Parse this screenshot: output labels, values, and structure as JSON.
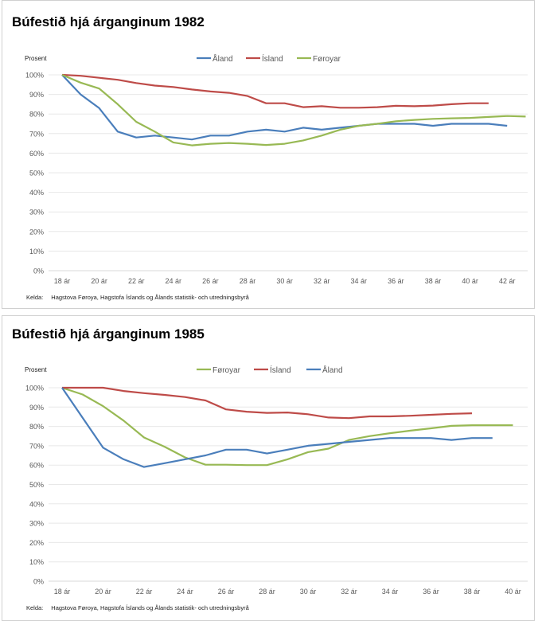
{
  "chart_data": [
    {
      "type": "line",
      "title": "Búfestið hjá árganginum 1982",
      "ylabel": "Prosent",
      "ylim": [
        0,
        100
      ],
      "yticks": [
        "0%",
        "10%",
        "20%",
        "30%",
        "40%",
        "50%",
        "60%",
        "70%",
        "80%",
        "90%",
        "100%"
      ],
      "x_start": 18,
      "xticks": [
        "18 ár",
        "20 ár",
        "22 ár",
        "24 ár",
        "26 ár",
        "28 ár",
        "30 ár",
        "32 ár",
        "34 ár",
        "36 ár",
        "38 ár",
        "40 ár",
        "42 ár"
      ],
      "legend_position": "top-center",
      "grid": true,
      "series": [
        {
          "name": "Åland",
          "color": "#4a7ebb",
          "values": [
            100,
            90,
            83,
            71,
            68,
            69,
            68,
            67,
            69,
            69,
            71,
            72,
            71,
            73,
            72,
            73,
            74,
            75,
            75,
            75,
            74,
            75,
            75,
            75,
            74
          ]
        },
        {
          "name": "Ísland",
          "color": "#be4b48",
          "values": [
            100,
            99.5,
            98.5,
            97.5,
            95.8,
            94.5,
            93.8,
            92.5,
            91.5,
            90.8,
            89.2,
            85.5,
            85.5,
            83.5,
            84,
            83.2,
            83.2,
            83.5,
            84.2,
            84,
            84.3,
            85,
            85.5,
            85.5
          ]
        },
        {
          "name": "Føroyar",
          "color": "#98b954",
          "values": [
            100,
            96,
            93,
            85,
            76,
            71,
            65.5,
            64,
            64.8,
            65.2,
            64.8,
            64.2,
            64.8,
            66.5,
            69,
            72,
            74,
            75,
            76.3,
            77,
            77.5,
            77.8,
            78,
            78.5,
            79,
            78.7
          ]
        }
      ],
      "source_label": "Kelda:",
      "source": "Hagstova Føroya, Hagstofa Íslands og Ålands statistik- och utredningsbyrå"
    },
    {
      "type": "line",
      "title": "Búfestið hjá árganginum 1985",
      "ylabel": "Prosent",
      "ylim": [
        0,
        100
      ],
      "yticks": [
        "0%",
        "10%",
        "20%",
        "30%",
        "40%",
        "50%",
        "60%",
        "70%",
        "80%",
        "90%",
        "100%"
      ],
      "x_start": 18,
      "xticks": [
        "18 ár",
        "20 ár",
        "22 ár",
        "24 ár",
        "26 ár",
        "28 ár",
        "30 ár",
        "32 ár",
        "34 ár",
        "36 ár",
        "38 ár",
        "40 ár"
      ],
      "legend_position": "top-center",
      "grid": true,
      "series": [
        {
          "name": "Føroyar",
          "color": "#98b954",
          "values": [
            100,
            96.5,
            90.5,
            83,
            74.3,
            69.5,
            64,
            60.2,
            60.2,
            60,
            60,
            63,
            66.7,
            68.5,
            73,
            75,
            76.5,
            77.8,
            79,
            80.3,
            80.6,
            80.6,
            80.6
          ]
        },
        {
          "name": "Ísland",
          "color": "#be4b48",
          "values": [
            100,
            100,
            100,
            98.3,
            97.2,
            96.3,
            95.2,
            93.4,
            88.8,
            87.6,
            87,
            87.2,
            86.3,
            84.6,
            84.3,
            85.2,
            85.2,
            85.5,
            86,
            86.5,
            86.8
          ]
        },
        {
          "name": "Åland",
          "color": "#4a7ebb",
          "values": [
            100,
            84.5,
            69,
            63,
            59,
            61,
            63,
            65,
            68,
            68,
            66,
            68,
            70,
            71,
            72,
            73,
            74,
            74,
            74,
            73,
            74,
            74
          ]
        }
      ],
      "source_label": "Kelda:",
      "source": "Hagstova Føroya, Hagstofa Íslands og Ålands statistik- och utredningsbyrå"
    }
  ]
}
